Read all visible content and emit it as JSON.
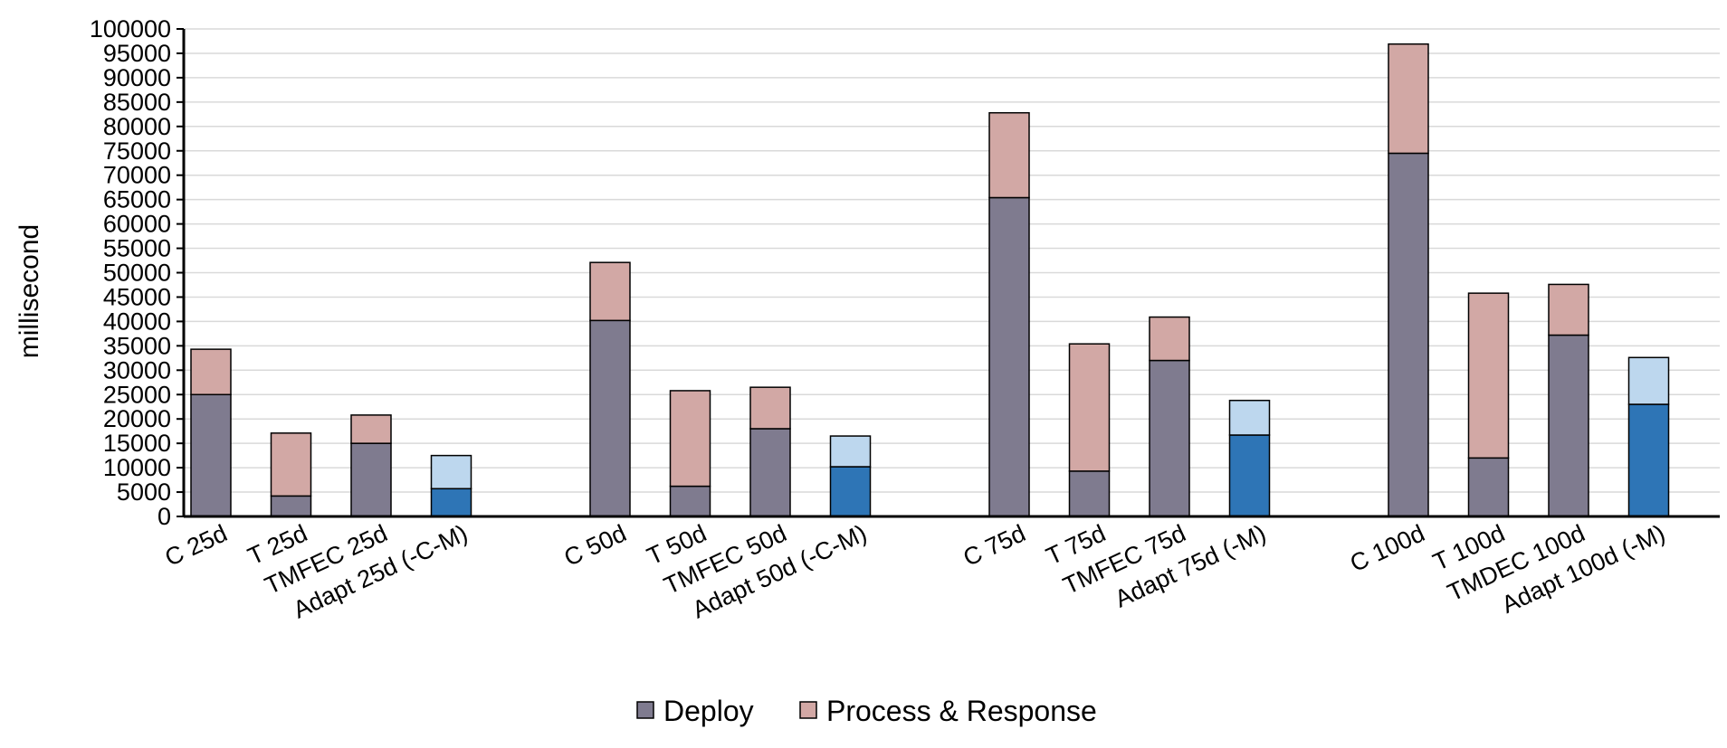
{
  "chart_data": {
    "type": "bar",
    "stacked": true,
    "ylabel": "millisecond",
    "xlabel": "",
    "ylim": [
      0,
      100000
    ],
    "ytick_step": 5000,
    "grid": true,
    "legend_position": "bottom",
    "categories": [
      "C 25d",
      "T 25d",
      "TMFEC 25d",
      "Adapt 25d (-C-M)",
      "C 50d",
      "T 50d",
      "TMFEC 50d",
      "Adapt 50d (-C-M)",
      "C 75d",
      "T 75d",
      "TMFEC 75d",
      "Adapt 75d (-M)",
      "C 100d",
      "T 100d",
      "TMDEC 100d",
      "Adapt 100d (-M)"
    ],
    "groups": [
      [
        "C 25d",
        "T 25d",
        "TMFEC 25d",
        "Adapt 25d (-C-M)"
      ],
      [
        "C 50d",
        "T 50d",
        "TMFEC 50d",
        "Adapt 50d (-C-M)"
      ],
      [
        "C 75d",
        "T 75d",
        "TMFEC 75d",
        "Adapt 75d (-M)"
      ],
      [
        "C 100d",
        "T 100d",
        "TMDEC 100d",
        "Adapt 100d (-M)"
      ]
    ],
    "series": [
      {
        "name": "Deploy",
        "values": [
          25000,
          4200,
          15000,
          5700,
          40200,
          6200,
          18000,
          10200,
          65400,
          9300,
          32000,
          16700,
          74500,
          12000,
          37200,
          23000
        ]
      },
      {
        "name": "Process & Response",
        "values": [
          9300,
          12900,
          5800,
          6800,
          11900,
          19600,
          8500,
          6300,
          17400,
          26100,
          8900,
          7100,
          22400,
          33800,
          10400,
          9600
        ]
      }
    ],
    "colors": {
      "deploy": "#7f7b8f",
      "process_response": "#d2a8a5",
      "adapt_deploy": "#2e75b6",
      "adapt_process_response": "#bdd7ee",
      "grid": "#d9d9d9",
      "axis": "#000000",
      "bar_stroke": "#000000"
    },
    "highlighted_categories": [
      "Adapt 25d (-C-M)",
      "Adapt 50d (-C-M)",
      "Adapt 75d (-M)",
      "Adapt 100d (-M)"
    ]
  }
}
